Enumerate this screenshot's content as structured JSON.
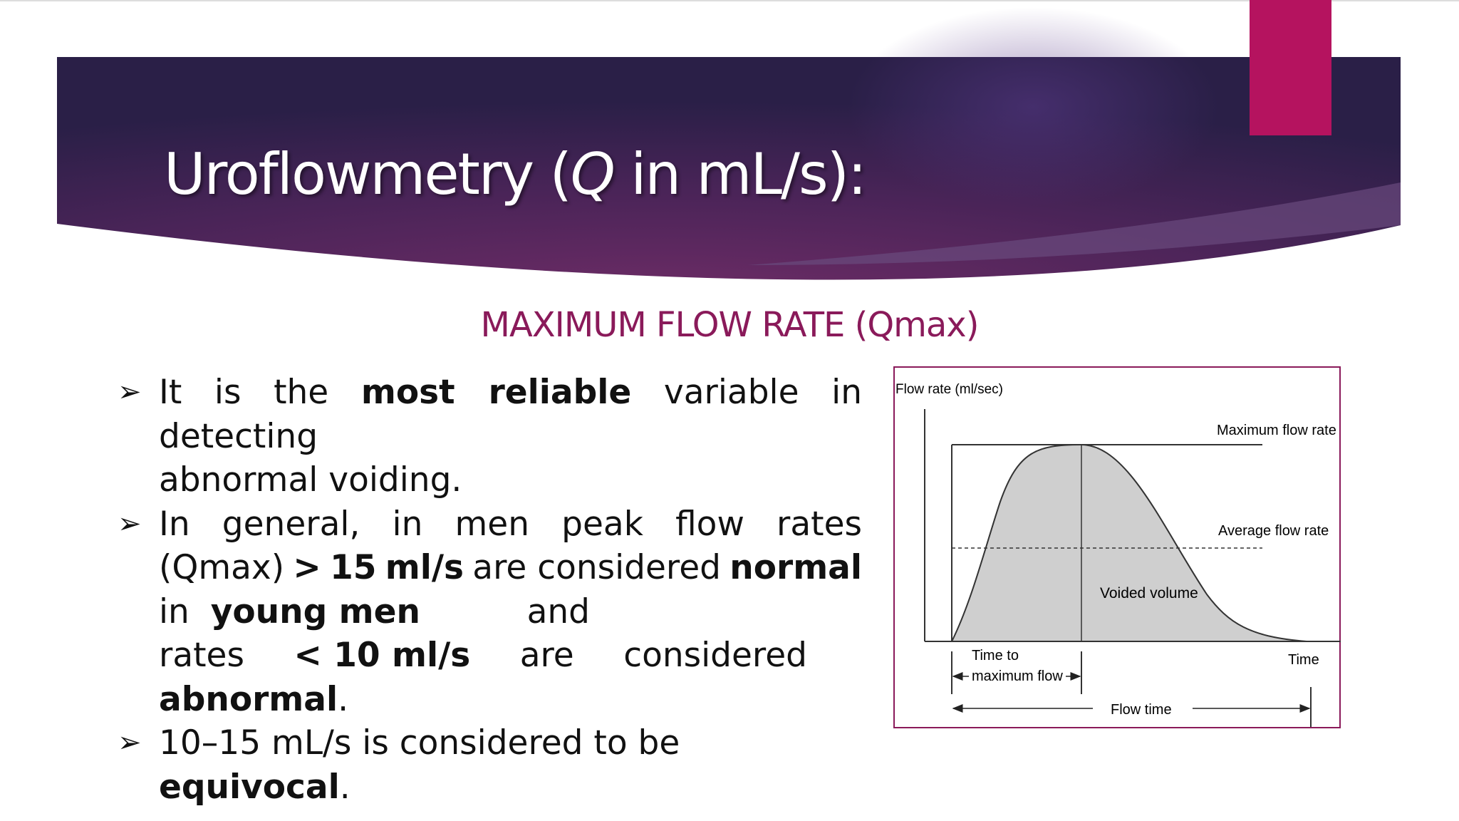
{
  "slide": {
    "title_prefix": "Uroflowmetry (",
    "title_q": "Q",
    "title_suffix": " in mL/s):",
    "subtitle": "MAXIMUM FLOW RATE (Qmax)",
    "colors": {
      "banner_dark": "#2a1f47",
      "banner_mid": "#5a2a5e",
      "accent": "#b5135f",
      "subtitle": "#8a1a5a"
    }
  },
  "bullets": {
    "b1_l1_plain1": "It is the",
    "b1_l1_bold": "most reliable",
    "b1_l1_plain2": "variable in detecting",
    "b1_l2": "abnormal voiding.",
    "b2_l1": [
      "In",
      "general,",
      "in",
      "men",
      "peak",
      "flow",
      "rates"
    ],
    "b2_l2_plain1": "(Qmax)",
    "b2_l2_bold1": ">",
    "b2_l2_bold2": "15",
    "b2_l2_bold3": "ml/s",
    "b2_l2_plain2": "are considered",
    "b2_l2_bold4": "normal",
    "b2_l3_plain1": "in",
    "b2_l3_bold": "young men",
    "b2_l3_plain2": "and",
    "b2_l4_plain1": "rates",
    "b2_l4_bold": "< 10 ml/s",
    "b2_l4_plain2": "are",
    "b2_l4_plain3": "considered",
    "b2_l5_bold": "abnormal",
    "b2_l5_plain": ".",
    "b3_plain1": "10–15 mL/s is considered to be",
    "b3_bold": "equivocal",
    "b3_plain2": ".",
    "arrow_glyph": "➢"
  },
  "figure": {
    "ylabel": "Flow rate (ml/sec)",
    "max_label": "Maximum flow rate",
    "avg_label": "Average flow rate",
    "volume_label": "Voided volume",
    "ttm_label_1": "Time to",
    "ttm_label_2": "maximum flow",
    "time_label": "Time",
    "flowtime_label": "Flow time"
  }
}
